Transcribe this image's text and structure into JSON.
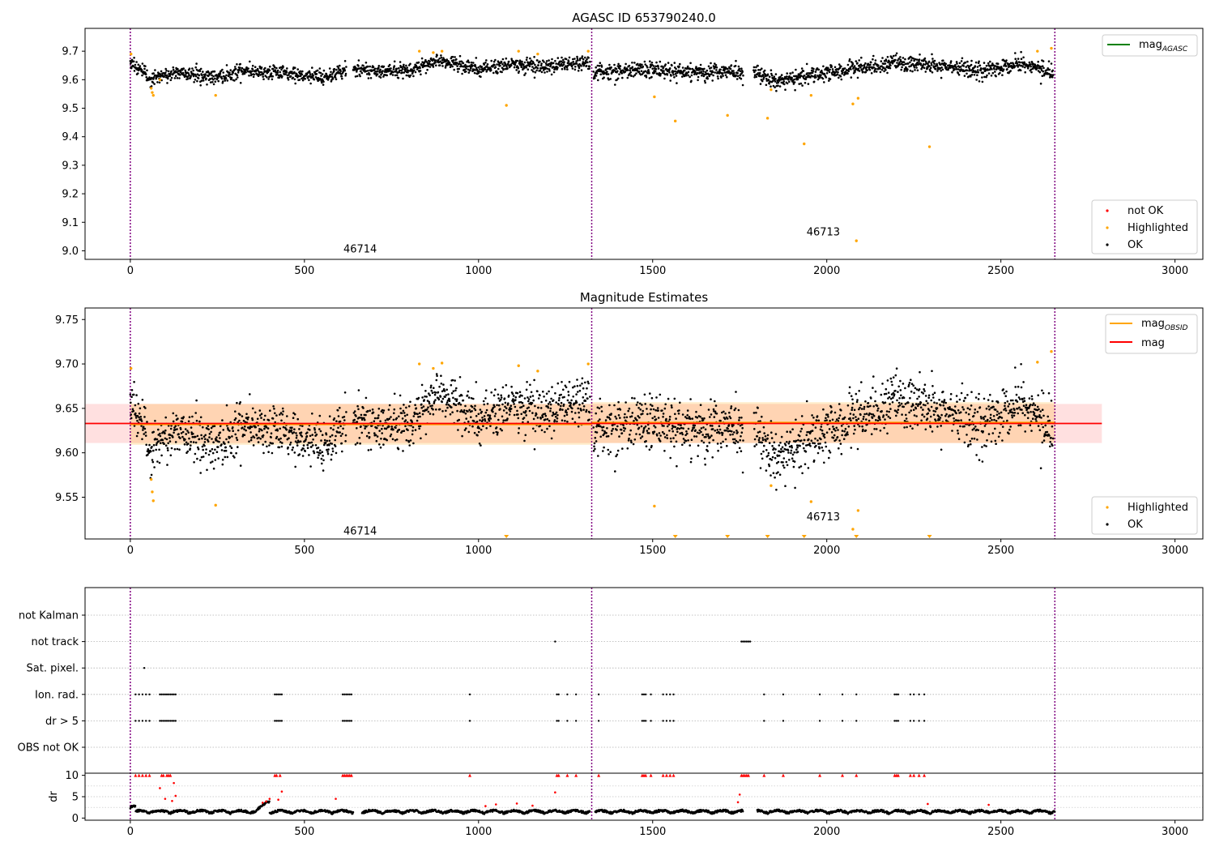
{
  "chart_data": [
    {
      "type": "scatter",
      "title": "AGASC ID 653790240.0",
      "xlim": [
        -130,
        3080
      ],
      "ylim": [
        8.97,
        9.78
      ],
      "xticks": [
        0,
        500,
        1000,
        1500,
        2000,
        2500,
        3000
      ],
      "yticks": [
        9.0,
        9.1,
        9.2,
        9.3,
        9.4,
        9.5,
        9.6,
        9.7
      ],
      "obsid_boundaries": [
        0,
        1325,
        2655
      ],
      "obsid_labels": [
        {
          "text": "46714",
          "x": 660,
          "y": 9.0
        },
        {
          "text": "46713",
          "x": 1990,
          "y": 9.06
        }
      ],
      "line_legend": [
        {
          "name": "mag",
          "sub": "AGASC",
          "color": "#008000"
        }
      ],
      "scatter_legend": [
        {
          "name": "not OK",
          "color": "#ff0000"
        },
        {
          "name": "Highlighted",
          "color": "#ffa500"
        },
        {
          "name": "OK",
          "color": "#000000"
        }
      ],
      "ok_segments": [
        {
          "x": [
            0,
            60,
            130,
            250,
            330,
            450,
            560,
            620
          ],
          "y": [
            9.665,
            9.6,
            9.625,
            9.61,
            9.635,
            9.62,
            9.61,
            9.635
          ],
          "sd": 0.013
        },
        {
          "x": [
            640,
            800,
            880,
            1000,
            1100,
            1200,
            1320
          ],
          "y": [
            9.635,
            9.63,
            9.67,
            9.635,
            9.655,
            9.645,
            9.66
          ],
          "sd": 0.013
        },
        {
          "x": [
            1330,
            1450,
            1600,
            1760
          ],
          "y": [
            9.625,
            9.635,
            9.63,
            9.625
          ],
          "sd": 0.014
        },
        {
          "x": [
            1790,
            1850,
            1950,
            2100,
            2200,
            2300,
            2450,
            2560,
            2650
          ],
          "y": [
            9.63,
            9.59,
            9.615,
            9.645,
            9.66,
            9.65,
            9.63,
            9.66,
            9.62
          ],
          "sd": 0.014
        }
      ],
      "highlighted": [
        {
          "x": 2,
          "y": 9.69
        },
        {
          "x": 60,
          "y": 9.57
        },
        {
          "x": 63,
          "y": 9.555
        },
        {
          "x": 66,
          "y": 9.545
        },
        {
          "x": 85,
          "y": 9.6
        },
        {
          "x": 245,
          "y": 9.545
        },
        {
          "x": 830,
          "y": 9.7
        },
        {
          "x": 870,
          "y": 9.695
        },
        {
          "x": 895,
          "y": 9.7
        },
        {
          "x": 1080,
          "y": 9.51
        },
        {
          "x": 1115,
          "y": 9.7
        },
        {
          "x": 1170,
          "y": 9.69
        },
        {
          "x": 1315,
          "y": 9.7
        },
        {
          "x": 1505,
          "y": 9.54
        },
        {
          "x": 1565,
          "y": 9.455
        },
        {
          "x": 1715,
          "y": 9.475
        },
        {
          "x": 1830,
          "y": 9.465
        },
        {
          "x": 1840,
          "y": 9.565
        },
        {
          "x": 1935,
          "y": 9.375
        },
        {
          "x": 1955,
          "y": 9.545
        },
        {
          "x": 2075,
          "y": 9.515
        },
        {
          "x": 2085,
          "y": 9.035
        },
        {
          "x": 2090,
          "y": 9.535
        },
        {
          "x": 2295,
          "y": 9.365
        },
        {
          "x": 2605,
          "y": 9.7
        },
        {
          "x": 2645,
          "y": 9.71
        }
      ]
    },
    {
      "type": "scatter",
      "title": "Magnitude Estimates",
      "xlim": [
        -130,
        3080
      ],
      "ylim": [
        9.503,
        9.763
      ],
      "xticks": [
        0,
        500,
        1000,
        1500,
        2000,
        2500,
        3000
      ],
      "yticks": [
        9.55,
        9.6,
        9.65,
        9.7,
        9.75
      ],
      "obsid_boundaries": [
        0,
        1325,
        2655
      ],
      "obsid_labels": [
        {
          "text": "46714",
          "x": 660,
          "y": 9.51
        },
        {
          "text": "46713",
          "x": 1990,
          "y": 9.526
        }
      ],
      "line_legend": [
        {
          "name": "mag",
          "sub": "OBSID",
          "color": "#ffa500"
        },
        {
          "name": "mag",
          "sub": "",
          "color": "#ff0000"
        }
      ],
      "scatter_legend": [
        {
          "name": "Highlighted",
          "color": "#ffa500"
        },
        {
          "name": "OK",
          "color": "#000000"
        }
      ],
      "mag": 9.633,
      "mag_band": [
        -130,
        2790,
        9.611,
        9.655
      ],
      "obsid_mags": [
        {
          "x0": 0,
          "x1": 1325,
          "mag": 9.632,
          "lo": 9.609,
          "hi": 9.655
        },
        {
          "x0": 1325,
          "x1": 2655,
          "mag": 9.634,
          "lo": 9.611,
          "hi": 9.657
        }
      ],
      "ok_segments": [
        {
          "x": [
            0,
            20,
            60,
            130,
            250,
            330,
            450,
            560,
            620
          ],
          "y": [
            9.665,
            9.645,
            9.6,
            9.625,
            9.61,
            9.635,
            9.62,
            9.61,
            9.635
          ],
          "sd": 0.014
        },
        {
          "x": [
            640,
            800,
            880,
            1000,
            1100,
            1200,
            1320
          ],
          "y": [
            9.635,
            9.63,
            9.67,
            9.635,
            9.655,
            9.645,
            9.66
          ],
          "sd": 0.014
        },
        {
          "x": [
            1330,
            1450,
            1600,
            1760
          ],
          "y": [
            9.625,
            9.635,
            9.63,
            9.625
          ],
          "sd": 0.015
        },
        {
          "x": [
            1790,
            1850,
            1950,
            2100,
            2200,
            2300,
            2450,
            2560,
            2650
          ],
          "y": [
            9.63,
            9.59,
            9.615,
            9.645,
            9.66,
            9.65,
            9.63,
            9.66,
            9.62
          ],
          "sd": 0.015
        }
      ],
      "highlighted": [
        {
          "x": 2,
          "y": 9.695
        },
        {
          "x": 60,
          "y": 9.57
        },
        {
          "x": 63,
          "y": 9.556
        },
        {
          "x": 66,
          "y": 9.546
        },
        {
          "x": 245,
          "y": 9.541
        },
        {
          "x": 830,
          "y": 9.7
        },
        {
          "x": 870,
          "y": 9.695
        },
        {
          "x": 895,
          "y": 9.701
        },
        {
          "x": 1115,
          "y": 9.698
        },
        {
          "x": 1170,
          "y": 9.692
        },
        {
          "x": 1315,
          "y": 9.7
        },
        {
          "x": 1505,
          "y": 9.54
        },
        {
          "x": 1840,
          "y": 9.563
        },
        {
          "x": 1955,
          "y": 9.545
        },
        {
          "x": 2075,
          "y": 9.514
        },
        {
          "x": 2090,
          "y": 9.535
        },
        {
          "x": 2605,
          "y": 9.702
        },
        {
          "x": 2645,
          "y": 9.714
        }
      ],
      "below_axis": [
        1080,
        1565,
        1715,
        1830,
        1935,
        2085,
        2295
      ]
    },
    {
      "type": "scatter",
      "title": "",
      "xlim": [
        -130,
        3080
      ],
      "xticks": [
        0,
        500,
        1000,
        1500,
        2000,
        2500,
        3000
      ],
      "obsid_boundaries": [
        0,
        1325,
        2655
      ],
      "flag_rows": [
        "not Kalman",
        "not track",
        "Sat. pixel.",
        "Ion. rad.",
        "dr > 5",
        "OBS not OK"
      ],
      "flags": {
        "not Kalman": [],
        "not track": [
          1220,
          1755,
          1760,
          1765,
          1770,
          1775,
          1780
        ],
        "Sat. pixel.": [
          40
        ],
        "Ion. rad.": [
          15,
          25,
          35,
          45,
          55,
          85,
          90,
          95,
          100,
          105,
          110,
          115,
          120,
          125,
          130,
          415,
          420,
          425,
          430,
          435,
          610,
          615,
          620,
          625,
          630,
          635,
          975,
          1225,
          1230,
          1255,
          1280,
          1345,
          1470,
          1475,
          1480,
          1495,
          1530,
          1540,
          1550,
          1560,
          1820,
          1875,
          1980,
          2045,
          2085,
          2195,
          2200,
          2205,
          2240,
          2250,
          2265,
          2280
        ],
        "dr > 5": [
          15,
          25,
          35,
          45,
          55,
          85,
          90,
          95,
          100,
          105,
          110,
          115,
          120,
          125,
          130,
          415,
          420,
          425,
          430,
          435,
          610,
          615,
          620,
          625,
          630,
          635,
          975,
          1225,
          1230,
          1255,
          1280,
          1345,
          1470,
          1475,
          1480,
          1495,
          1530,
          1540,
          1550,
          1560,
          1820,
          1875,
          1980,
          2045,
          2085,
          2195,
          2200,
          2205,
          2240,
          2250,
          2265,
          2280
        ],
        "OBS not OK": []
      }
    },
    {
      "type": "scatter",
      "title": "",
      "ylabel": "dr",
      "ylim": [
        -0.5,
        10.5
      ],
      "yticks": [
        0,
        5,
        10
      ],
      "xlim": [
        -130,
        3080
      ],
      "xticks": [
        0,
        500,
        1000,
        1500,
        2000,
        2500,
        3000
      ],
      "xticklabels": [
        "0",
        "500",
        "1000",
        "1500",
        "2000",
        "2500",
        "3000"
      ],
      "obsid_boundaries": [
        0,
        1325,
        2655
      ],
      "dr_ok_level": [
        1.4,
        1.7
      ],
      "dr_clip": 10,
      "dr_red": [
        {
          "x": 15,
          "y": 10
        },
        {
          "x": 25,
          "y": 10
        },
        {
          "x": 35,
          "y": 10
        },
        {
          "x": 45,
          "y": 10
        },
        {
          "x": 55,
          "y": 10
        },
        {
          "x": 85,
          "y": 7
        },
        {
          "x": 90,
          "y": 10
        },
        {
          "x": 95,
          "y": 10
        },
        {
          "x": 100,
          "y": 4.5
        },
        {
          "x": 105,
          "y": 10
        },
        {
          "x": 110,
          "y": 10
        },
        {
          "x": 115,
          "y": 10
        },
        {
          "x": 120,
          "y": 4
        },
        {
          "x": 125,
          "y": 8.2
        },
        {
          "x": 130,
          "y": 5.2
        },
        {
          "x": 380,
          "y": 3.6
        },
        {
          "x": 390,
          "y": 3.9
        },
        {
          "x": 400,
          "y": 4.5
        },
        {
          "x": 415,
          "y": 10
        },
        {
          "x": 420,
          "y": 10
        },
        {
          "x": 425,
          "y": 4.3
        },
        {
          "x": 430,
          "y": 10
        },
        {
          "x": 435,
          "y": 6.2
        },
        {
          "x": 590,
          "y": 4.5
        },
        {
          "x": 610,
          "y": 10
        },
        {
          "x": 615,
          "y": 10
        },
        {
          "x": 620,
          "y": 10
        },
        {
          "x": 625,
          "y": 10
        },
        {
          "x": 630,
          "y": 10
        },
        {
          "x": 635,
          "y": 10
        },
        {
          "x": 975,
          "y": 10
        },
        {
          "x": 1020,
          "y": 2.8
        },
        {
          "x": 1050,
          "y": 3.2
        },
        {
          "x": 1110,
          "y": 3.4
        },
        {
          "x": 1155,
          "y": 2.9
        },
        {
          "x": 1220,
          "y": 6
        },
        {
          "x": 1225,
          "y": 10
        },
        {
          "x": 1230,
          "y": 10
        },
        {
          "x": 1255,
          "y": 10
        },
        {
          "x": 1280,
          "y": 10
        },
        {
          "x": 1345,
          "y": 10
        },
        {
          "x": 1470,
          "y": 10
        },
        {
          "x": 1475,
          "y": 10
        },
        {
          "x": 1480,
          "y": 10
        },
        {
          "x": 1495,
          "y": 10
        },
        {
          "x": 1530,
          "y": 10
        },
        {
          "x": 1540,
          "y": 10
        },
        {
          "x": 1550,
          "y": 10
        },
        {
          "x": 1560,
          "y": 10
        },
        {
          "x": 1755,
          "y": 10
        },
        {
          "x": 1760,
          "y": 10
        },
        {
          "x": 1765,
          "y": 10
        },
        {
          "x": 1770,
          "y": 10
        },
        {
          "x": 1775,
          "y": 10
        },
        {
          "x": 1750,
          "y": 5.5
        },
        {
          "x": 1745,
          "y": 3.7
        },
        {
          "x": 1820,
          "y": 10
        },
        {
          "x": 1875,
          "y": 10
        },
        {
          "x": 1980,
          "y": 10
        },
        {
          "x": 2045,
          "y": 10
        },
        {
          "x": 2085,
          "y": 10
        },
        {
          "x": 2195,
          "y": 10
        },
        {
          "x": 2200,
          "y": 10
        },
        {
          "x": 2205,
          "y": 10
        },
        {
          "x": 2240,
          "y": 10
        },
        {
          "x": 2250,
          "y": 10
        },
        {
          "x": 2265,
          "y": 10
        },
        {
          "x": 2280,
          "y": 10
        },
        {
          "x": 2290,
          "y": 3.3
        },
        {
          "x": 2465,
          "y": 3.1
        }
      ]
    }
  ]
}
